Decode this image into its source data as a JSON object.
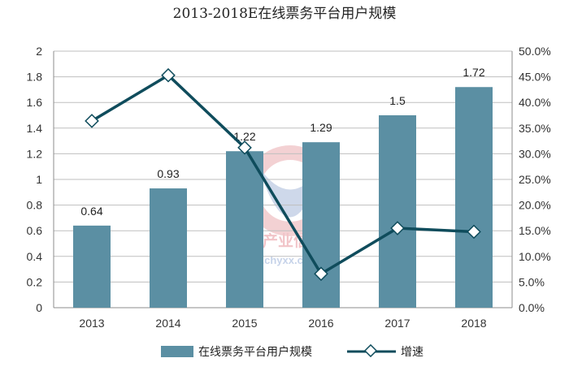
{
  "chart_data": {
    "type": "bar",
    "title": "2013-2018E在线票务平台用户规模",
    "categories": [
      "2013",
      "2014",
      "2015",
      "2016",
      "2017",
      "2018"
    ],
    "series": [
      {
        "name": "在线票务平台用户规模",
        "type": "bar",
        "axis": "left",
        "values": [
          0.64,
          0.93,
          1.22,
          1.29,
          1.5,
          1.72
        ],
        "labels": [
          "0.64",
          "0.93",
          "1.22",
          "1.29",
          "1.5",
          "1.72"
        ]
      },
      {
        "name": "增速",
        "type": "line",
        "axis": "right",
        "values": [
          0.364,
          0.453,
          0.312,
          0.066,
          0.155,
          0.148
        ]
      }
    ],
    "y_left": {
      "ylim": [
        0,
        2
      ],
      "ticks": [
        "0",
        "0.2",
        "0.4",
        "0.6",
        "0.8",
        "1",
        "1.2",
        "1.4",
        "1.6",
        "1.8",
        "2"
      ]
    },
    "y_right": {
      "ylim": [
        0,
        0.5
      ],
      "ticks": [
        "0.0%",
        "5.0%",
        "10.0%",
        "15.0%",
        "20.0%",
        "25.0%",
        "30.0%",
        "35.0%",
        "40.0%",
        "45.0%",
        "50.0%"
      ]
    },
    "grid": true,
    "legend": "bottom",
    "colors": {
      "bar": "#5b8fa3",
      "line": "#0f4c5c",
      "grid": "#bfbfbf"
    }
  },
  "watermark": {
    "line1": "中国产业信息",
    "line2": "www.chyxx.com"
  }
}
